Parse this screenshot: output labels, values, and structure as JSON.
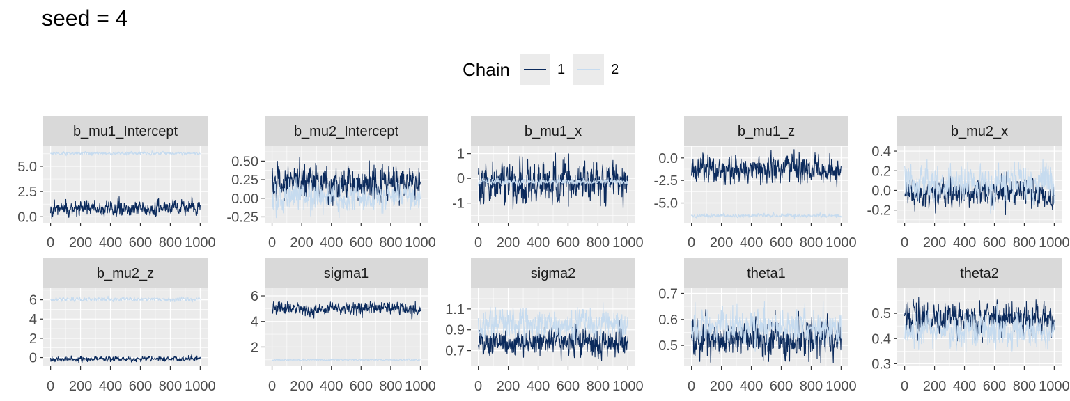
{
  "title": "seed = 4",
  "legend": {
    "title": "Chain",
    "position": "top",
    "entries": [
      {
        "label": "1",
        "color": "#0b2a5c"
      },
      {
        "label": "2",
        "color": "#c6dbef"
      }
    ]
  },
  "colors": {
    "panel_bg": "#ebebeb",
    "strip_bg": "#d9d9d9",
    "grid": "#ffffff",
    "chain1": "#0b2a5c",
    "chain2": "#c6dbef"
  },
  "chart_data": {
    "type": "line",
    "grid": true,
    "xlim": [
      0,
      1000
    ],
    "iterations": 1000,
    "panels": [
      {
        "param": "b_mu1_Intercept",
        "ylim": [
          -0.6,
          7.0
        ],
        "yticks": [
          0.0,
          2.5,
          5.0
        ],
        "yticklabels": [
          "0.0",
          "2.5",
          "5.0"
        ],
        "series": [
          {
            "name": "1",
            "mean": 0.85,
            "sd": 0.35,
            "min": -0.3,
            "max": 2.2
          },
          {
            "name": "2",
            "mean": 6.3,
            "sd": 0.08,
            "min": 6.0,
            "max": 6.6
          }
        ]
      },
      {
        "param": "b_mu2_Intercept",
        "ylim": [
          -0.33,
          0.7
        ],
        "yticks": [
          -0.25,
          0.0,
          0.25,
          0.5
        ],
        "yticklabels": [
          "-0.25",
          "0.00",
          "0.25",
          "0.50"
        ],
        "series": [
          {
            "name": "1",
            "mean": 0.2,
            "sd": 0.11,
            "min": -0.1,
            "max": 0.65
          },
          {
            "name": "2",
            "mean": 0.02,
            "sd": 0.09,
            "min": -0.3,
            "max": 0.3
          }
        ]
      },
      {
        "param": "b_mu1_x",
        "ylim": [
          -1.8,
          1.3
        ],
        "yticks": [
          -1,
          0,
          1
        ],
        "yticklabels": [
          "-1",
          "0",
          "1"
        ],
        "series": [
          {
            "name": "1",
            "mean": -0.2,
            "sd": 0.4,
            "min": -1.7,
            "max": 1.15
          },
          {
            "name": "2",
            "mean": -0.15,
            "sd": 0.06,
            "min": -0.4,
            "max": 0.1
          }
        ]
      },
      {
        "param": "b_mu1_z",
        "ylim": [
          -7.2,
          1.3
        ],
        "yticks": [
          -5.0,
          -2.5,
          0.0
        ],
        "yticklabels": [
          "-5.0",
          "-2.5",
          "0.0"
        ],
        "series": [
          {
            "name": "1",
            "mean": -1.3,
            "sd": 0.7,
            "min": -3.7,
            "max": 1.0
          },
          {
            "name": "2",
            "mean": -6.4,
            "sd": 0.1,
            "min": -6.8,
            "max": -5.9
          }
        ]
      },
      {
        "param": "b_mu2_x",
        "ylim": [
          -0.33,
          0.45
        ],
        "yticks": [
          -0.2,
          0.0,
          0.2,
          0.4
        ],
        "yticklabels": [
          "-0.2",
          "0.0",
          "0.2",
          "0.4"
        ],
        "series": [
          {
            "name": "1",
            "mean": -0.03,
            "sd": 0.07,
            "min": -0.3,
            "max": 0.25
          },
          {
            "name": "2",
            "mean": 0.08,
            "sd": 0.09,
            "min": -0.25,
            "max": 0.38
          }
        ]
      },
      {
        "param": "b_mu2_z",
        "ylim": [
          -0.9,
          7.2
        ],
        "yticks": [
          0,
          2,
          4,
          6
        ],
        "yticklabels": [
          "0",
          "2",
          "4",
          "6"
        ],
        "series": [
          {
            "name": "1",
            "mean": -0.15,
            "sd": 0.12,
            "min": -0.6,
            "max": 0.3
          },
          {
            "name": "2",
            "mean": 6.05,
            "sd": 0.1,
            "min": 5.7,
            "max": 6.4
          }
        ]
      },
      {
        "param": "sigma1",
        "ylim": [
          0.5,
          6.6
        ],
        "yticks": [
          2,
          4,
          6
        ],
        "yticklabels": [
          "2",
          "4",
          "6"
        ],
        "series": [
          {
            "name": "1",
            "mean": 5.0,
            "sd": 0.25,
            "min": 4.2,
            "max": 6.1
          },
          {
            "name": "2",
            "mean": 1.0,
            "sd": 0.03,
            "min": 0.9,
            "max": 1.1
          }
        ]
      },
      {
        "param": "sigma2",
        "ylim": [
          0.55,
          1.3
        ],
        "yticks": [
          0.7,
          0.9,
          1.1
        ],
        "yticklabels": [
          "0.7",
          "0.9",
          "1.1"
        ],
        "series": [
          {
            "name": "1",
            "mean": 0.78,
            "sd": 0.06,
            "min": 0.6,
            "max": 1.0
          },
          {
            "name": "2",
            "mean": 0.95,
            "sd": 0.07,
            "min": 0.75,
            "max": 1.25
          }
        ]
      },
      {
        "param": "theta1",
        "ylim": [
          0.42,
          0.72
        ],
        "yticks": [
          0.5,
          0.6,
          0.7
        ],
        "yticklabels": [
          "0.5",
          "0.6",
          "0.7"
        ],
        "series": [
          {
            "name": "1",
            "mean": 0.52,
            "sd": 0.035,
            "min": 0.43,
            "max": 0.69
          },
          {
            "name": "2",
            "mean": 0.57,
            "sd": 0.03,
            "min": 0.47,
            "max": 0.67
          }
        ]
      },
      {
        "param": "theta2",
        "ylim": [
          0.29,
          0.6
        ],
        "yticks": [
          0.3,
          0.4,
          0.5
        ],
        "yticklabels": [
          "0.3",
          "0.4",
          "0.5"
        ],
        "series": [
          {
            "name": "1",
            "mean": 0.48,
            "sd": 0.03,
            "min": 0.33,
            "max": 0.58
          },
          {
            "name": "2",
            "mean": 0.43,
            "sd": 0.03,
            "min": 0.32,
            "max": 0.54
          }
        ]
      }
    ],
    "xticklabels": [
      "0",
      "200",
      "400",
      "600",
      "800",
      "1000"
    ],
    "xticks": [
      0,
      200,
      400,
      600,
      800,
      1000
    ]
  }
}
